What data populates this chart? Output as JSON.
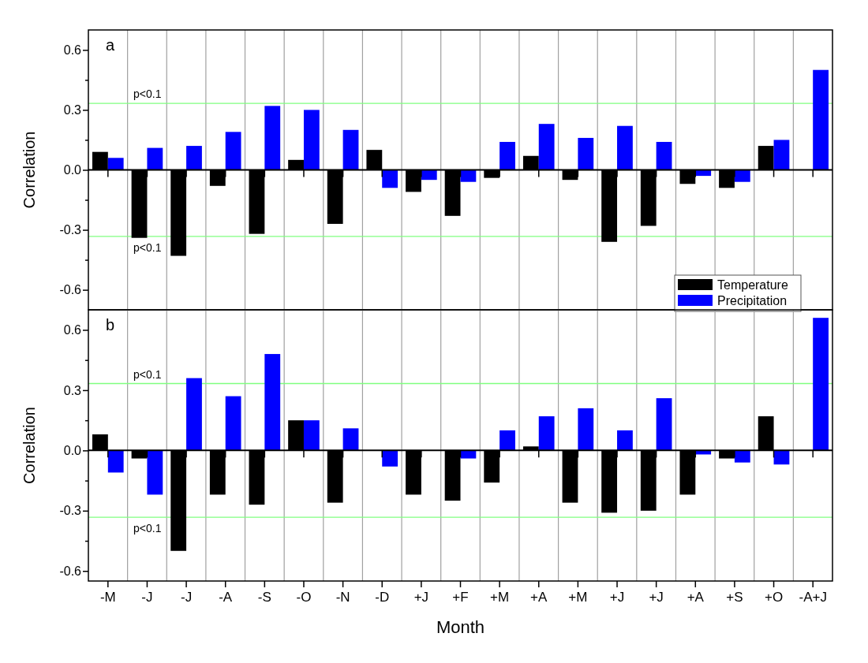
{
  "chart_data": [
    {
      "type": "bar",
      "title": "a",
      "ylabel": "Correlation",
      "categories": [
        null,
        null,
        null,
        null,
        null,
        null,
        null,
        null,
        null,
        null,
        null,
        null,
        null,
        null,
        null,
        null,
        null,
        null,
        null
      ],
      "series": [
        {
          "name": "Temperature",
          "color": "#000000",
          "values": [
            0.09,
            -0.34,
            -0.43,
            -0.08,
            -0.32,
            0.05,
            -0.27,
            0.1,
            -0.11,
            -0.23,
            -0.04,
            0.07,
            -0.05,
            -0.36,
            -0.28,
            -0.07,
            -0.09,
            0.12,
            null
          ]
        },
        {
          "name": "Precipitation",
          "color": "#0000ff",
          "values": [
            0.06,
            0.11,
            0.12,
            0.19,
            0.32,
            0.3,
            0.2,
            -0.09,
            -0.05,
            -0.06,
            0.14,
            0.23,
            0.16,
            0.22,
            0.14,
            -0.03,
            -0.06,
            0.15,
            0.5
          ]
        }
      ],
      "ylim": [
        -0.7,
        0.7
      ],
      "yticks": [
        {
          "value": -0.6,
          "label": "-0.6"
        },
        {
          "value": -0.45,
          "label": null
        },
        {
          "value": -0.3,
          "label": "-0.3"
        },
        {
          "value": -0.15,
          "label": null
        },
        {
          "value": 0,
          "label": "0.0"
        },
        {
          "value": 0.15,
          "label": null
        },
        {
          "value": 0.3,
          "label": "0.3"
        },
        {
          "value": 0.45,
          "label": null
        },
        {
          "value": 0.6,
          "label": "0.6"
        }
      ],
      "ref_lines": [
        {
          "axis": "y",
          "value": 0.333,
          "label": "p<0.1",
          "color": "#80ff80"
        },
        {
          "axis": "y",
          "value": -0.333,
          "label": "p<0.1",
          "color": "#80ff80"
        }
      ],
      "grid": "x",
      "legend": "bottom right",
      "tick_labels": "y"
    },
    {
      "type": "bar",
      "title": "b",
      "ylabel": "Correlation",
      "xlabel": "Month",
      "categories": [
        "-M",
        "-J",
        "-J",
        "-A",
        "-S",
        "-O",
        "-N",
        "-D",
        "+J",
        "+F",
        "+M",
        "+A",
        "+M",
        "+J",
        "+J",
        "+A",
        "+S",
        "+O",
        "-A+J"
      ],
      "series": [
        {
          "color": "#000000",
          "values": [
            0.08,
            -0.04,
            -0.5,
            -0.22,
            -0.27,
            0.15,
            -0.26,
            null,
            -0.22,
            -0.25,
            -0.16,
            0.02,
            -0.26,
            -0.31,
            -0.3,
            -0.22,
            -0.04,
            0.17,
            null
          ]
        },
        {
          "color": "#0000ff",
          "values": [
            -0.11,
            -0.22,
            0.36,
            0.27,
            0.48,
            0.15,
            0.11,
            -0.08,
            0.0,
            -0.04,
            0.1,
            0.17,
            0.21,
            0.1,
            0.26,
            -0.02,
            -0.06,
            -0.07,
            0.66
          ]
        }
      ],
      "ylim": [
        -0.65,
        0.7
      ],
      "yticks": [
        {
          "value": -0.6,
          "label": "-0.6"
        },
        {
          "value": -0.45,
          "label": null
        },
        {
          "value": -0.3,
          "label": "-0.3"
        },
        {
          "value": -0.15,
          "label": null
        },
        {
          "value": 0,
          "label": "0.0"
        },
        {
          "value": 0.15,
          "label": null
        },
        {
          "value": 0.3,
          "label": "0.3"
        },
        {
          "value": 0.45,
          "label": null
        },
        {
          "value": 0.6,
          "label": "0.6"
        }
      ],
      "ref_lines": [
        {
          "axis": "y",
          "value": 0.333,
          "label": "p<0.1",
          "color": "#80ff80"
        },
        {
          "axis": "y",
          "value": -0.333,
          "label": "p<0.1",
          "color": "#80ff80"
        }
      ],
      "grid": "x"
    }
  ]
}
